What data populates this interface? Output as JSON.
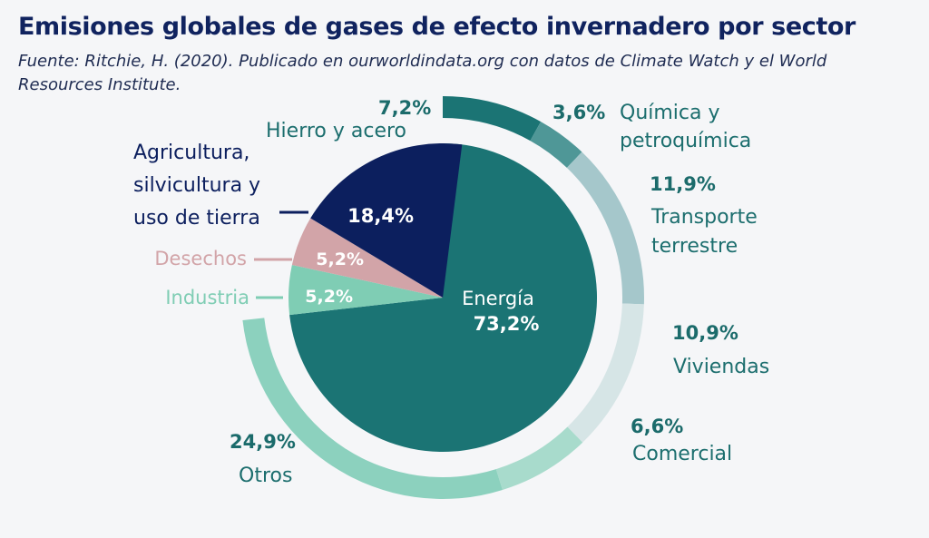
{
  "title": "Emisiones globales de gases de efecto invernadero por sector",
  "source": "Fuente: Ritchie, H. (2020). Publicado en ourworldindata.org con datos de Climate Watch y el World Resources Institute.",
  "chart_data": {
    "type": "pie",
    "title": "Emisiones globales de gases de efecto invernadero por sector",
    "inner_pie": [
      {
        "label": "Energía",
        "value": 73.2,
        "value_label": "73,2%",
        "color": "#1b7474"
      },
      {
        "label": "Industria",
        "value": 5.2,
        "value_label": "5,2%",
        "color": "#7fcdb4"
      },
      {
        "label": "Desechos",
        "value": 5.2,
        "value_label": "5,2%",
        "color": "#d2a4a8"
      },
      {
        "label": [
          "Agricultura,",
          "silvicultura y",
          "uso de tierra"
        ],
        "value": 18.4,
        "value_label": "18,4%",
        "color": "#0c1f5e"
      }
    ],
    "outer_ring": {
      "parent": "Energía",
      "segments": [
        {
          "label": [
            "Hierro y acero"
          ],
          "value": 7.2,
          "value_label": "7,2%",
          "color": "#1b7474"
        },
        {
          "label": [
            "Química y",
            "petroquímica"
          ],
          "value": 3.6,
          "value_label": "3,6%",
          "color": "#4f9797"
        },
        {
          "label": [
            "Transporte",
            "terrestre"
          ],
          "value": 11.9,
          "value_label": "11,9%",
          "color": "#a5c7cb"
        },
        {
          "label": [
            "Viviendas"
          ],
          "value": 10.9,
          "value_label": "10,9%",
          "color": "#d6e5e6"
        },
        {
          "label": [
            "Comercial"
          ],
          "value": 6.6,
          "value_label": "6,6%",
          "color": "#a8dbcc"
        },
        {
          "label": [
            "Otros"
          ],
          "value": 24.9,
          "value_label": "24,9%",
          "color": "#8cd1be"
        }
      ]
    },
    "colors": {
      "value_label_outer": "#1b6b6b",
      "category_label": "#1c6e6e",
      "white": "#ffffff"
    }
  }
}
